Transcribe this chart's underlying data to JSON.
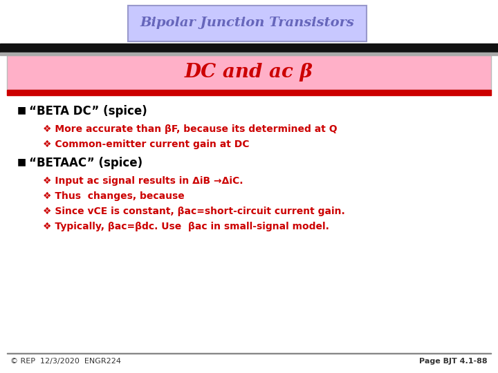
{
  "title": "Bipolar Junction Transistors",
  "subtitle": "DC and ac β",
  "title_box_color": "#c8c8ff",
  "subtitle_box_color": "#ffb0c8",
  "title_border_color": "#9999cc",
  "top_bar_color_1": "#111111",
  "top_bar_color_2": "#888888",
  "red_bar_color": "#cc0000",
  "title_text_color": "#6666bb",
  "subtitle_text_color": "#cc0000",
  "bullet1_title": "“BETA DC” (spice)",
  "bullet1_sub1": "❖ More accurate than βF, because its determined at Q",
  "bullet1_sub2": "❖ Common-emitter current gain at DC",
  "bullet2_title": "“BETAAC” (spice)",
  "bullet2_sub1": "❖ Input ac signal results in ΔiB →ΔiC.",
  "bullet2_sub2": "❖ Thus  changes, because",
  "bullet2_sub3": "❖ Since vCE is constant, βac=short-circuit current gain.",
  "bullet2_sub4": "❖ Typically, βac=βdc. Use  βac in small-signal model.",
  "footer_left": "© REP  12/3/2020  ENGR224",
  "footer_right": "Page BJT 4.1-88",
  "bg_color": "#ffffff",
  "bullet_color": "#000000",
  "sub_bullet_color": "#cc0000"
}
